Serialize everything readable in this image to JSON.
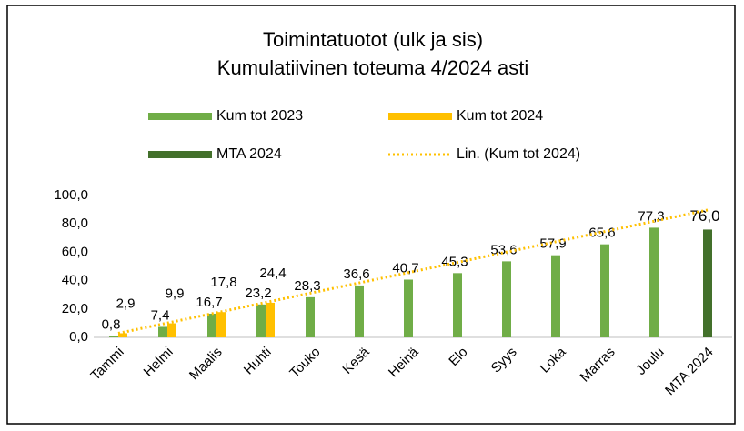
{
  "chart_data": {
    "type": "bar",
    "title": [
      "Toimintatuotot (ulk ja sis)",
      "Kumulatiivinen toteuma 4/2024 asti"
    ],
    "categories": [
      "Tammi",
      "Helmi",
      "Maalis",
      "Huhti",
      "Touko",
      "Kesä",
      "Heinä",
      "Elo",
      "Syys",
      "Loka",
      "Marras",
      "Joulu",
      "MTA 2024"
    ],
    "series": [
      {
        "name": "Kum tot 2023",
        "color": "#70ad47",
        "values": [
          0.8,
          7.4,
          16.7,
          23.2,
          28.3,
          36.6,
          40.7,
          45.3,
          53.6,
          57.9,
          65.6,
          77.3,
          null
        ],
        "value_labels": [
          "0,8",
          "7,4",
          "16,7",
          "23,2",
          "28,3",
          "36,6",
          "40,7",
          "45,3",
          "53,6",
          "57,9",
          "65,6",
          "77,3",
          null
        ]
      },
      {
        "name": "Kum tot 2024",
        "color": "#ffc000",
        "values": [
          2.9,
          9.9,
          17.8,
          24.4,
          null,
          null,
          null,
          null,
          null,
          null,
          null,
          null,
          null
        ],
        "value_labels": [
          "2,9",
          "9,9",
          "17,8",
          "24,4",
          null,
          null,
          null,
          null,
          null,
          null,
          null,
          null,
          null
        ],
        "trendline": {
          "name": "Lin. (Kum tot 2024)",
          "color": "#ffc000"
        }
      },
      {
        "name": "MTA 2024",
        "color": "#43702b",
        "values": [
          null,
          null,
          null,
          null,
          null,
          null,
          null,
          null,
          null,
          null,
          null,
          null,
          76.0
        ],
        "value_labels": [
          null,
          null,
          null,
          null,
          null,
          null,
          null,
          null,
          null,
          null,
          null,
          null,
          "76,0"
        ]
      }
    ],
    "ylim": [
      0,
      100
    ],
    "yticks": [
      {
        "value": 0,
        "label": "0,0"
      },
      {
        "value": 20,
        "label": "20,0"
      },
      {
        "value": 40,
        "label": "40,0"
      },
      {
        "value": 60,
        "label": "60,0"
      },
      {
        "value": 80,
        "label": "80,0"
      },
      {
        "value": 100,
        "label": "100,0"
      }
    ],
    "grid": false
  }
}
